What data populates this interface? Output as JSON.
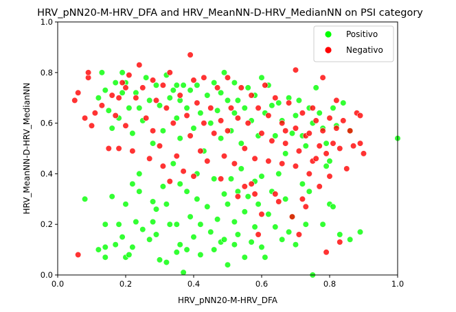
{
  "chart_data": {
    "type": "scatter",
    "title": "HRV_pNN20-M-HRV_DFA and HRV_MeanNN-D-HRV_MedianNN on PSI category",
    "xlabel": "HRV_pNN20-M-HRV_DFA",
    "ylabel": "HRV_MeanNN-D-HRV_MedianNN",
    "xlim": [
      0.0,
      1.0
    ],
    "ylim": [
      0.0,
      1.0
    ],
    "xticks": [
      "0.0",
      "0.2",
      "0.4",
      "0.6",
      "0.8",
      "1.0"
    ],
    "yticks": [
      "0.0",
      "0.2",
      "0.4",
      "0.6",
      "0.8",
      "1.0"
    ],
    "grid": false,
    "legend_position": "upper-right",
    "series": [
      {
        "name": "Positivo",
        "color": "#00ff00",
        "points": [
          [
            0.08,
            0.3
          ],
          [
            0.12,
            0.1
          ],
          [
            0.14,
            0.07
          ],
          [
            0.14,
            0.11
          ],
          [
            0.14,
            0.2
          ],
          [
            0.16,
            0.31
          ],
          [
            0.17,
            0.12
          ],
          [
            0.18,
            0.2
          ],
          [
            0.19,
            0.15
          ],
          [
            0.2,
            0.28
          ],
          [
            0.2,
            0.07
          ],
          [
            0.21,
            0.08
          ],
          [
            0.22,
            0.36
          ],
          [
            0.22,
            0.11
          ],
          [
            0.23,
            0.21
          ],
          [
            0.24,
            0.4
          ],
          [
            0.24,
            0.33
          ],
          [
            0.25,
            0.18
          ],
          [
            0.27,
            0.14
          ],
          [
            0.28,
            0.21
          ],
          [
            0.28,
            0.29
          ],
          [
            0.29,
            0.16
          ],
          [
            0.29,
            0.26
          ],
          [
            0.3,
            0.06
          ],
          [
            0.31,
            0.35
          ],
          [
            0.32,
            0.05
          ],
          [
            0.32,
            0.28
          ],
          [
            0.33,
            0.2
          ],
          [
            0.34,
            0.44
          ],
          [
            0.35,
            0.09
          ],
          [
            0.35,
            0.2
          ],
          [
            0.36,
            0.12
          ],
          [
            0.36,
            0.36
          ],
          [
            0.37,
            0.01
          ],
          [
            0.38,
            0.1
          ],
          [
            0.38,
            0.33
          ],
          [
            0.39,
            0.23
          ],
          [
            0.4,
            0.15
          ],
          [
            0.41,
            0.3
          ],
          [
            0.41,
            0.4
          ],
          [
            0.42,
            0.2
          ],
          [
            0.42,
            0.08
          ],
          [
            0.44,
            0.27
          ],
          [
            0.45,
            0.17
          ],
          [
            0.46,
            0.38
          ],
          [
            0.46,
            0.1
          ],
          [
            0.47,
            0.22
          ],
          [
            0.48,
            0.13
          ],
          [
            0.49,
            0.32
          ],
          [
            0.49,
            0.14
          ],
          [
            0.5,
            0.04
          ],
          [
            0.5,
            0.28
          ],
          [
            0.51,
            0.38
          ],
          [
            0.52,
            0.21
          ],
          [
            0.52,
            0.12
          ],
          [
            0.53,
            0.33
          ],
          [
            0.53,
            0.16
          ],
          [
            0.54,
            0.42
          ],
          [
            0.55,
            0.25
          ],
          [
            0.55,
            0.07
          ],
          [
            0.56,
            0.31
          ],
          [
            0.57,
            0.13
          ],
          [
            0.58,
            0.37
          ],
          [
            0.58,
            0.19
          ],
          [
            0.59,
            0.28
          ],
          [
            0.6,
            0.11
          ],
          [
            0.6,
            0.39
          ],
          [
            0.61,
            0.07
          ],
          [
            0.62,
            0.24
          ],
          [
            0.63,
            0.33
          ],
          [
            0.64,
            0.19
          ],
          [
            0.65,
            0.4
          ],
          [
            0.66,
            0.14
          ],
          [
            0.67,
            0.3
          ],
          [
            0.68,
            0.17
          ],
          [
            0.69,
            0.23
          ],
          [
            0.7,
            0.12
          ],
          [
            0.72,
            0.36
          ],
          [
            0.73,
            0.2
          ],
          [
            0.74,
            0.33
          ],
          [
            0.75,
            0.0
          ],
          [
            0.78,
            0.2
          ],
          [
            0.79,
            0.43
          ],
          [
            0.8,
            0.28
          ],
          [
            0.81,
            0.27
          ],
          [
            0.83,
            0.16
          ],
          [
            0.86,
            0.14
          ],
          [
            0.89,
            0.17
          ],
          [
            0.12,
            0.7
          ],
          [
            0.13,
            0.8
          ],
          [
            0.14,
            0.73
          ],
          [
            0.15,
            0.65
          ],
          [
            0.16,
            0.58
          ],
          [
            0.17,
            0.76
          ],
          [
            0.18,
            0.62
          ],
          [
            0.19,
            0.8
          ],
          [
            0.19,
            0.72
          ],
          [
            0.2,
            0.76
          ],
          [
            0.21,
            0.66
          ],
          [
            0.22,
            0.56
          ],
          [
            0.23,
            0.72
          ],
          [
            0.24,
            0.66
          ],
          [
            0.25,
            0.61
          ],
          [
            0.26,
            0.78
          ],
          [
            0.27,
            0.69
          ],
          [
            0.28,
            0.52
          ],
          [
            0.29,
            0.75
          ],
          [
            0.3,
            0.67
          ],
          [
            0.31,
            0.57
          ],
          [
            0.32,
            0.79
          ],
          [
            0.33,
            0.7
          ],
          [
            0.34,
            0.73
          ],
          [
            0.35,
            0.62
          ],
          [
            0.35,
            0.75
          ],
          [
            0.36,
            0.54
          ],
          [
            0.36,
            0.69
          ],
          [
            0.37,
            0.75
          ],
          [
            0.38,
            0.66
          ],
          [
            0.39,
            0.73
          ],
          [
            0.4,
            0.58
          ],
          [
            0.41,
            0.75
          ],
          [
            0.42,
            0.64
          ],
          [
            0.43,
            0.49
          ],
          [
            0.44,
            0.71
          ],
          [
            0.45,
            0.6
          ],
          [
            0.46,
            0.76
          ],
          [
            0.47,
            0.65
          ],
          [
            0.48,
            0.54
          ],
          [
            0.48,
            0.72
          ],
          [
            0.49,
            0.8
          ],
          [
            0.5,
            0.69
          ],
          [
            0.51,
            0.57
          ],
          [
            0.52,
            0.76
          ],
          [
            0.52,
            0.64
          ],
          [
            0.53,
            0.69
          ],
          [
            0.54,
            0.52
          ],
          [
            0.55,
            0.66
          ],
          [
            0.56,
            0.74
          ],
          [
            0.57,
            0.61
          ],
          [
            0.58,
            0.71
          ],
          [
            0.59,
            0.55
          ],
          [
            0.6,
            0.78
          ],
          [
            0.61,
            0.64
          ],
          [
            0.62,
            0.75
          ],
          [
            0.63,
            0.67
          ],
          [
            0.64,
            0.55
          ],
          [
            0.65,
            0.68
          ],
          [
            0.66,
            0.61
          ],
          [
            0.67,
            0.48
          ],
          [
            0.68,
            0.7
          ],
          [
            0.69,
            0.56
          ],
          [
            0.7,
            0.63
          ],
          [
            0.71,
            0.69
          ],
          [
            0.72,
            0.55
          ],
          [
            0.73,
            0.51
          ],
          [
            0.74,
            0.66
          ],
          [
            0.75,
            0.6
          ],
          [
            0.76,
            0.74
          ],
          [
            0.77,
            0.64
          ],
          [
            0.78,
            0.58
          ],
          [
            0.79,
            0.52
          ],
          [
            0.8,
            0.45
          ],
          [
            0.81,
            0.66
          ],
          [
            0.82,
            0.59
          ],
          [
            0.84,
            0.68
          ],
          [
            0.86,
            0.57
          ],
          [
            1.0,
            0.54
          ]
        ]
      },
      {
        "name": "Negativo",
        "color": "#ff0000",
        "points": [
          [
            0.05,
            0.69
          ],
          [
            0.06,
            0.72
          ],
          [
            0.06,
            0.08
          ],
          [
            0.08,
            0.62
          ],
          [
            0.09,
            0.78
          ],
          [
            0.09,
            0.8
          ],
          [
            0.1,
            0.59
          ],
          [
            0.11,
            0.64
          ],
          [
            0.13,
            0.67
          ],
          [
            0.15,
            0.5
          ],
          [
            0.16,
            0.71
          ],
          [
            0.17,
            0.63
          ],
          [
            0.18,
            0.7
          ],
          [
            0.18,
            0.5
          ],
          [
            0.19,
            0.76
          ],
          [
            0.2,
            0.74
          ],
          [
            0.2,
            0.59
          ],
          [
            0.21,
            0.79
          ],
          [
            0.22,
            0.49
          ],
          [
            0.23,
            0.7
          ],
          [
            0.24,
            0.83
          ],
          [
            0.25,
            0.74
          ],
          [
            0.26,
            0.62
          ],
          [
            0.27,
            0.46
          ],
          [
            0.28,
            0.77
          ],
          [
            0.28,
            0.57
          ],
          [
            0.29,
            0.69
          ],
          [
            0.3,
            0.51
          ],
          [
            0.31,
            0.75
          ],
          [
            0.31,
            0.43
          ],
          [
            0.32,
            0.66
          ],
          [
            0.33,
            0.8
          ],
          [
            0.33,
            0.37
          ],
          [
            0.34,
            0.6
          ],
          [
            0.35,
            0.47
          ],
          [
            0.36,
            0.71
          ],
          [
            0.37,
            0.41
          ],
          [
            0.38,
            0.63
          ],
          [
            0.39,
            0.87
          ],
          [
            0.39,
            0.55
          ],
          [
            0.4,
            0.77
          ],
          [
            0.4,
            0.39
          ],
          [
            0.41,
            0.68
          ],
          [
            0.42,
            0.49
          ],
          [
            0.43,
            0.6
          ],
          [
            0.43,
            0.78
          ],
          [
            0.44,
            0.45
          ],
          [
            0.45,
            0.66
          ],
          [
            0.46,
            0.56
          ],
          [
            0.47,
            0.74
          ],
          [
            0.48,
            0.38
          ],
          [
            0.48,
            0.61
          ],
          [
            0.49,
            0.47
          ],
          [
            0.5,
            0.78
          ],
          [
            0.5,
            0.57
          ],
          [
            0.51,
            0.66
          ],
          [
            0.52,
            0.44
          ],
          [
            0.53,
            0.62
          ],
          [
            0.53,
            0.31
          ],
          [
            0.54,
            0.74
          ],
          [
            0.55,
            0.5
          ],
          [
            0.55,
            0.35
          ],
          [
            0.56,
            0.6
          ],
          [
            0.57,
            0.71
          ],
          [
            0.58,
            0.46
          ],
          [
            0.58,
            0.32
          ],
          [
            0.59,
            0.66
          ],
          [
            0.6,
            0.56
          ],
          [
            0.6,
            0.24
          ],
          [
            0.61,
            0.75
          ],
          [
            0.62,
            0.45
          ],
          [
            0.62,
            0.63
          ],
          [
            0.63,
            0.53
          ],
          [
            0.64,
            0.7
          ],
          [
            0.65,
            0.29
          ],
          [
            0.66,
            0.6
          ],
          [
            0.66,
            0.44
          ],
          [
            0.67,
            0.52
          ],
          [
            0.68,
            0.68
          ],
          [
            0.69,
            0.23
          ],
          [
            0.7,
            0.58
          ],
          [
            0.7,
            0.43
          ],
          [
            0.71,
            0.49
          ],
          [
            0.72,
            0.64
          ],
          [
            0.72,
            0.3
          ],
          [
            0.73,
            0.55
          ],
          [
            0.74,
            0.4
          ],
          [
            0.75,
            0.66
          ],
          [
            0.75,
            0.45
          ],
          [
            0.76,
            0.61
          ],
          [
            0.77,
            0.51
          ],
          [
            0.77,
            0.35
          ],
          [
            0.78,
            0.78
          ],
          [
            0.78,
            0.57
          ],
          [
            0.79,
            0.48
          ],
          [
            0.8,
            0.62
          ],
          [
            0.8,
            0.39
          ],
          [
            0.81,
            0.52
          ],
          [
            0.82,
            0.69
          ],
          [
            0.82,
            0.58
          ],
          [
            0.83,
            0.13
          ],
          [
            0.84,
            0.61
          ],
          [
            0.85,
            0.42
          ],
          [
            0.86,
            0.57
          ],
          [
            0.87,
            0.51
          ],
          [
            0.88,
            0.64
          ],
          [
            0.89,
            0.63
          ],
          [
            0.89,
            0.52
          ],
          [
            0.9,
            0.48
          ],
          [
            0.7,
            0.81
          ],
          [
            0.71,
            0.16
          ],
          [
            0.76,
            0.46
          ],
          [
            0.79,
            0.09
          ],
          [
            0.73,
            0.27
          ],
          [
            0.83,
            0.5
          ],
          [
            0.74,
            0.56
          ],
          [
            0.67,
            0.57
          ],
          [
            0.64,
            0.32
          ],
          [
            0.59,
            0.16
          ],
          [
            0.57,
            0.36
          ]
        ]
      }
    ]
  }
}
